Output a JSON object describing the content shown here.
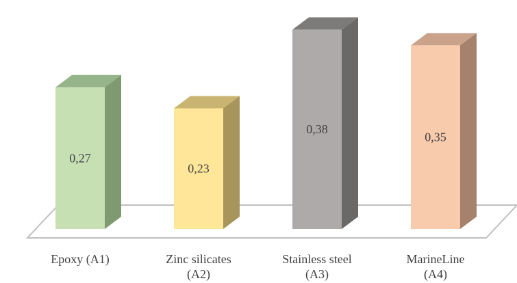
{
  "chart_data": {
    "type": "bar",
    "three_d": true,
    "categories": [
      [
        "Epoxy (A1)"
      ],
      [
        "Zinc silicates",
        "(A2)"
      ],
      [
        "Stainless steel",
        "(A3)"
      ],
      [
        "MarineLine",
        "(A4)"
      ]
    ],
    "values": [
      0.27,
      0.23,
      0.38,
      0.35
    ],
    "value_labels": [
      "0,27",
      "0,23",
      "0,38",
      "0,35"
    ],
    "ylim": [
      0,
      0.4
    ],
    "grid": false,
    "legend": "none",
    "colors": {
      "front": [
        "#c6e0b4",
        "#ffe699",
        "#aeaaaa",
        "#f8cbad"
      ],
      "side": [
        "#7f9a70",
        "#a8955b",
        "#6b6868",
        "#a6826c"
      ],
      "top": [
        "#96b48a",
        "#c9b571",
        "#7d7a7a",
        "#caa28a"
      ],
      "floor": "#ffffff",
      "floor_stroke": "#bfbfbf",
      "text": "#404040"
    }
  }
}
